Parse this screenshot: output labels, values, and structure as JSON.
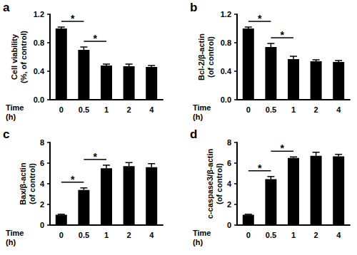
{
  "chart_data": [
    {
      "type": "bar",
      "panel": "a",
      "ylabel": "Cell viability\n(%, of control)",
      "xlabel": "Time\n(h)",
      "categories": [
        "0",
        "0.5",
        "1",
        "2",
        "4"
      ],
      "values": [
        1.0,
        0.7,
        0.48,
        0.47,
        0.46
      ],
      "errors": [
        0.02,
        0.04,
        0.02,
        0.03,
        0.02
      ],
      "color": "#000000",
      "ylim": [
        0,
        1.2
      ],
      "yticks": [
        {
          "value": 0,
          "label": "0.0"
        },
        0.4,
        0.8,
        1.2
      ],
      "comparisons": [
        {
          "between": [
            "0",
            "0.5"
          ],
          "label": "*"
        },
        {
          "between": [
            "0.5",
            "1"
          ],
          "label": "*"
        }
      ]
    },
    {
      "type": "bar",
      "panel": "b",
      "ylabel": "Bcl-2/β-actin\n(of control)",
      "xlabel": "Time\n(h)",
      "categories": [
        "0",
        "0.5",
        "1",
        "2",
        "4"
      ],
      "values": [
        1.0,
        0.74,
        0.57,
        0.54,
        0.53
      ],
      "errors": [
        0.02,
        0.05,
        0.04,
        0.02,
        0.02
      ],
      "color": "#000000",
      "ylim": [
        0,
        1.2
      ],
      "yticks": [
        {
          "value": 0,
          "label": "0.0"
        },
        0.4,
        0.8,
        1.2
      ],
      "comparisons": [
        {
          "between": [
            "0",
            "0.5"
          ],
          "label": "*"
        },
        {
          "between": [
            "0.5",
            "1"
          ],
          "label": "*"
        }
      ]
    },
    {
      "type": "bar",
      "panel": "c",
      "ylabel": "Bax/β-actin\n(of control)",
      "xlabel": "Time\n(h)",
      "categories": [
        "0",
        "0.5",
        "1",
        "2",
        "4"
      ],
      "values": [
        1.0,
        3.4,
        5.5,
        5.7,
        5.6
      ],
      "errors": [
        0.05,
        0.2,
        0.3,
        0.35,
        0.35
      ],
      "color": "#000000",
      "ylim": [
        0,
        8
      ],
      "yticks": [
        0,
        2,
        4,
        6,
        8
      ],
      "comparisons": [
        {
          "between": [
            "0",
            "0.5"
          ],
          "label": "*"
        },
        {
          "between": [
            "0.5",
            "1"
          ],
          "label": "*"
        }
      ]
    },
    {
      "type": "bar",
      "panel": "d",
      "ylabel": "c-caspase3/β-actin\n(of control)",
      "xlabel": "Time\n(h)",
      "categories": [
        "0",
        "0.5",
        "1",
        "2",
        "4"
      ],
      "values": [
        1.0,
        4.45,
        6.5,
        6.7,
        6.65
      ],
      "errors": [
        0.05,
        0.25,
        0.1,
        0.35,
        0.2
      ],
      "color": "#000000",
      "ylim": [
        0,
        8
      ],
      "yticks": [
        0,
        2,
        4,
        6,
        8
      ],
      "comparisons": [
        {
          "between": [
            "0",
            "0.5"
          ],
          "label": "*"
        },
        {
          "between": [
            "0.5",
            "1"
          ],
          "label": "*"
        }
      ]
    }
  ]
}
